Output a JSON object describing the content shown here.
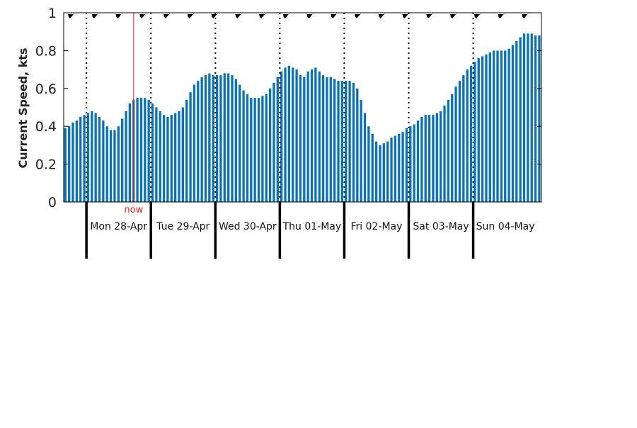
{
  "chart_data": {
    "type": "bar",
    "ylabel": "Current Speed, kts",
    "ylim": [
      0,
      1
    ],
    "yticks": [
      "0",
      "0.2",
      "0.4",
      "0.6",
      "0.8",
      "1"
    ],
    "day_labels": [
      "Mon 28-Apr",
      "Tue 29-Apr",
      "Wed 30-Apr",
      "Thu 01-May",
      "Fri 02-May",
      "Sat 03-May",
      "Sun 04-May"
    ],
    "now_label": "now",
    "now_index": 18,
    "day_start_indices": [
      6,
      23,
      40,
      57,
      74,
      91,
      108
    ],
    "bars_per_day": 17,
    "direction_arrow_count": 20,
    "values": [
      0.39,
      0.4,
      0.42,
      0.43,
      0.45,
      0.46,
      0.47,
      0.48,
      0.47,
      0.45,
      0.43,
      0.4,
      0.38,
      0.38,
      0.4,
      0.44,
      0.48,
      0.52,
      0.54,
      0.55,
      0.55,
      0.55,
      0.54,
      0.52,
      0.5,
      0.48,
      0.46,
      0.45,
      0.46,
      0.47,
      0.48,
      0.5,
      0.54,
      0.58,
      0.62,
      0.64,
      0.66,
      0.67,
      0.68,
      0.67,
      0.67,
      0.67,
      0.68,
      0.68,
      0.67,
      0.65,
      0.62,
      0.59,
      0.57,
      0.55,
      0.55,
      0.55,
      0.56,
      0.57,
      0.6,
      0.63,
      0.66,
      0.69,
      0.71,
      0.72,
      0.71,
      0.7,
      0.67,
      0.66,
      0.69,
      0.7,
      0.71,
      0.69,
      0.67,
      0.66,
      0.66,
      0.65,
      0.64,
      0.64,
      0.64,
      0.64,
      0.63,
      0.6,
      0.54,
      0.47,
      0.4,
      0.36,
      0.32,
      0.3,
      0.31,
      0.32,
      0.34,
      0.35,
      0.36,
      0.37,
      0.39,
      0.4,
      0.41,
      0.43,
      0.45,
      0.46,
      0.46,
      0.46,
      0.47,
      0.48,
      0.51,
      0.54,
      0.57,
      0.61,
      0.64,
      0.67,
      0.7,
      0.72,
      0.74,
      0.76,
      0.77,
      0.78,
      0.79,
      0.8,
      0.8,
      0.8,
      0.8,
      0.81,
      0.83,
      0.85,
      0.87,
      0.89,
      0.89,
      0.89,
      0.88,
      0.88
    ],
    "colors": {
      "bar": "#0b72b3",
      "now": "#e02020",
      "axis": "#000000"
    }
  }
}
